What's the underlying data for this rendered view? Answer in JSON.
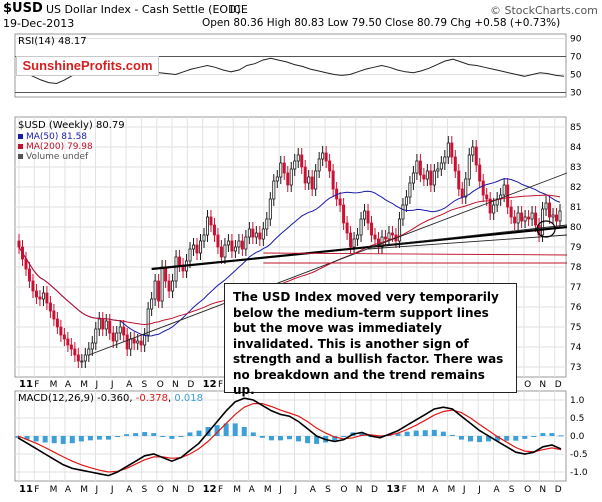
{
  "header": {
    "symbol": "$USD",
    "name": "US Dollar Index - Cash Settle (EOD)",
    "exchange": "ICE",
    "date": "19-Dec-2013",
    "quote": "Open 80.36  High 80.83  Low 79.50  Close 80.79  Chg +0.58 (+0.73%)",
    "watermark": "© StockCharts.com"
  },
  "logo_text": "SunshineProfits.com",
  "annotation": "The USD Index moved very temporarily below the medium-term support lines but the move was immediately invalidated. This is another sign of strength and a bullish factor. There was no breakdown and the trend remains up.",
  "colors": {
    "up_bar": "#1a1a1a",
    "down_bar": "#cc1133",
    "ma50": "#1a1aa8",
    "ma200": "#c0122a",
    "macd": "#000000",
    "signal": "#e01818",
    "histogram": "#3b9fd8",
    "grid": "#e2e2e2",
    "logo_text": "#d42020"
  },
  "chart_data": [
    {
      "type": "line",
      "panel": "RSI",
      "label": "RSI(14) 48.17",
      "value": 48.17,
      "ylim": [
        25,
        95
      ],
      "yticks": [
        90,
        70,
        50,
        30
      ],
      "reference_lines": [
        70,
        30
      ],
      "series": [
        {
          "values": [
            55,
            52,
            48,
            44,
            41,
            40,
            44,
            49,
            52,
            55,
            58,
            63,
            67,
            66,
            62,
            60,
            58,
            55,
            52,
            51,
            50,
            53,
            56,
            58,
            60,
            58,
            55,
            53,
            55,
            60,
            62,
            66,
            68,
            66,
            64,
            61,
            59,
            56,
            54,
            52,
            50,
            49,
            50,
            53,
            56,
            58,
            60,
            58,
            55,
            53,
            52,
            54,
            57,
            61,
            65,
            67,
            64,
            61,
            60,
            58,
            56,
            54,
            52,
            50,
            48,
            50,
            52,
            51,
            49,
            48
          ]
        }
      ]
    },
    {
      "type": "candlestick",
      "panel": "Price",
      "label": "$USD (Weekly) 80.79",
      "legend": [
        "MA(50) 81.58",
        "MA(200) 79.98",
        "Volume undef"
      ],
      "ylim": [
        72.5,
        85.5
      ],
      "yticks": [
        85,
        84,
        83,
        82,
        81,
        80,
        79,
        78,
        77,
        76,
        75,
        74,
        73
      ],
      "x_labels": [
        "11",
        "F",
        "M",
        "A",
        "M",
        "J",
        "J",
        "A",
        "S",
        "O",
        "N",
        "D",
        "12",
        "F",
        "M",
        "A",
        "M",
        "J",
        "J",
        "A",
        "S",
        "O",
        "N",
        "D",
        "13",
        "F",
        "M",
        "A",
        "M",
        "J",
        "J",
        "A",
        "S",
        "O",
        "N",
        "D"
      ],
      "close": [
        79.0,
        78.4,
        77.9,
        77.3,
        76.8,
        76.5,
        76.4,
        76.7,
        76.2,
        75.8,
        75.4,
        75.0,
        74.6,
        74.4,
        74.1,
        73.9,
        73.6,
        73.3,
        73.3,
        73.6,
        73.9,
        74.2,
        74.9,
        75.4,
        74.9,
        75.3,
        74.7,
        74.3,
        74.7,
        75.0,
        74.6,
        73.9,
        74.4,
        74.2,
        74.3,
        74.1,
        74.6,
        75.9,
        76.4,
        77.3,
        76.3,
        78.0,
        77.3,
        76.8,
        77.3,
        78.5,
        78.1,
        77.8,
        78.3,
        78.9,
        79.1,
        78.7,
        79.3,
        79.6,
        80.5,
        80.1,
        79.6,
        79.0,
        78.5,
        79.1,
        79.3,
        78.8,
        79.0,
        79.3,
        78.9,
        79.5,
        79.9,
        79.5,
        79.7,
        79.4,
        79.9,
        80.4,
        81.4,
        82.3,
        82.5,
        83.2,
        82.7,
        82.1,
        82.9,
        83.3,
        83.6,
        83.0,
        82.2,
        82.5,
        81.9,
        82.8,
        83.4,
        83.7,
        83.3,
        82.8,
        81.9,
        81.4,
        81.1,
        80.2,
        79.7,
        79.0,
        79.4,
        79.6,
        80.4,
        80.8,
        80.2,
        79.6,
        79.4,
        79.0,
        79.5,
        79.4,
        79.7,
        79.6,
        79.3,
        80.4,
        81.1,
        81.5,
        82.2,
        82.7,
        83.3,
        82.6,
        82.4,
        82.8,
        82.1,
        82.8,
        82.9,
        83.2,
        83.5,
        84.2,
        83.5,
        82.8,
        81.9,
        81.5,
        82.4,
        83.6,
        84.0,
        83.1,
        82.3,
        81.6,
        81.4,
        80.7,
        81.1,
        81.4,
        81.6,
        82.1,
        81.0,
        80.5,
        80.2,
        80.7,
        80.3,
        80.5,
        80.4,
        80.7,
        80.1,
        79.6,
        80.9,
        81.2,
        80.5,
        80.6,
        80.3,
        80.8
      ]
    },
    {
      "type": "line",
      "panel": "MACD",
      "label": "MACD(12,26,9) -0.360, -0.378, 0.018",
      "values_shown": [
        -0.36,
        -0.378,
        0.018
      ],
      "ylim": [
        -1.25,
        1.25
      ],
      "yticks": [
        1.0,
        0.5,
        0.0,
        -0.5,
        -1.0
      ],
      "x_labels": [
        "11",
        "F",
        "M",
        "A",
        "M",
        "J",
        "J",
        "A",
        "S",
        "O",
        "N",
        "D",
        "12",
        "F",
        "M",
        "A",
        "M",
        "J",
        "J",
        "A",
        "S",
        "O",
        "N",
        "D",
        "13",
        "F",
        "M",
        "A",
        "M",
        "J",
        "J",
        "A",
        "S",
        "O",
        "N",
        "D"
      ],
      "series": [
        {
          "values": [
            -0.05,
            -0.2,
            -0.35,
            -0.5,
            -0.65,
            -0.8,
            -0.9,
            -0.95,
            -1.0,
            -1.05,
            -1.1,
            -1.0,
            -0.85,
            -0.7,
            -0.55,
            -0.5,
            -0.6,
            -0.7,
            -0.6,
            -0.4,
            -0.2,
            0.1,
            0.4,
            0.7,
            0.95,
            1.05,
            1.0,
            0.85,
            0.7,
            0.6,
            0.55,
            0.4,
            0.2,
            0.0,
            -0.1,
            -0.15,
            -0.1,
            0.05,
            0.1,
            0.0,
            -0.05,
            0.05,
            0.15,
            0.3,
            0.45,
            0.6,
            0.75,
            0.8,
            0.75,
            0.55,
            0.35,
            0.15,
            0.0,
            -0.15,
            -0.3,
            -0.45,
            -0.5,
            -0.45,
            -0.3,
            -0.25,
            -0.36
          ]
        },
        {
          "values": [
            0.0,
            -0.1,
            -0.2,
            -0.32,
            -0.45,
            -0.58,
            -0.7,
            -0.8,
            -0.88,
            -0.95,
            -1.0,
            -0.98,
            -0.9,
            -0.78,
            -0.66,
            -0.58,
            -0.58,
            -0.62,
            -0.6,
            -0.5,
            -0.35,
            -0.15,
            0.1,
            0.35,
            0.6,
            0.8,
            0.9,
            0.9,
            0.82,
            0.72,
            0.64,
            0.55,
            0.4,
            0.22,
            0.08,
            -0.03,
            -0.08,
            -0.05,
            0.02,
            0.03,
            0.0,
            0.02,
            0.08,
            0.18,
            0.3,
            0.44,
            0.58,
            0.68,
            0.72,
            0.65,
            0.5,
            0.32,
            0.15,
            -0.02,
            -0.17,
            -0.32,
            -0.42,
            -0.44,
            -0.38,
            -0.33,
            -0.378
          ]
        }
      ]
    }
  ]
}
